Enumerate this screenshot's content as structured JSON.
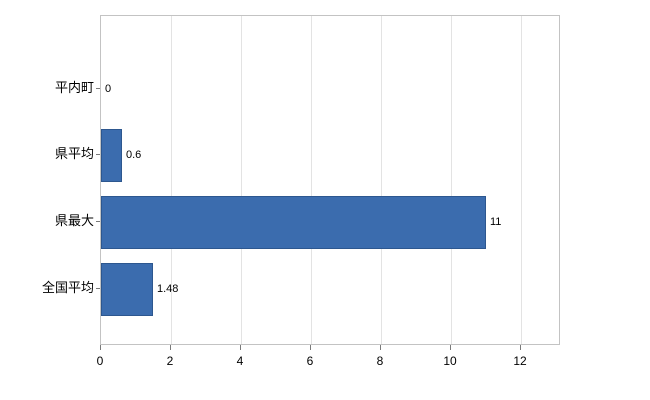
{
  "chart_data": {
    "type": "bar",
    "orientation": "horizontal",
    "title": "",
    "xlabel": "",
    "ylabel": "",
    "categories": [
      "平内町",
      "県平均",
      "県最大",
      "全国平均"
    ],
    "values": [
      0,
      0.6,
      11,
      1.48
    ],
    "value_labels": [
      "0",
      "0.6",
      "11",
      "1.48"
    ],
    "xticks": [
      0,
      2,
      4,
      6,
      8,
      10,
      12
    ],
    "xlim": [
      0,
      13.14
    ],
    "grid": true,
    "legend": "none",
    "bar_color": "#3b6cae",
    "bar_border_color": "#2d578f",
    "grid_color": "#e3e3e3",
    "axis_color": "#c3c3c3",
    "tick_color": "#7a7a7a",
    "text_color": "#000000"
  }
}
